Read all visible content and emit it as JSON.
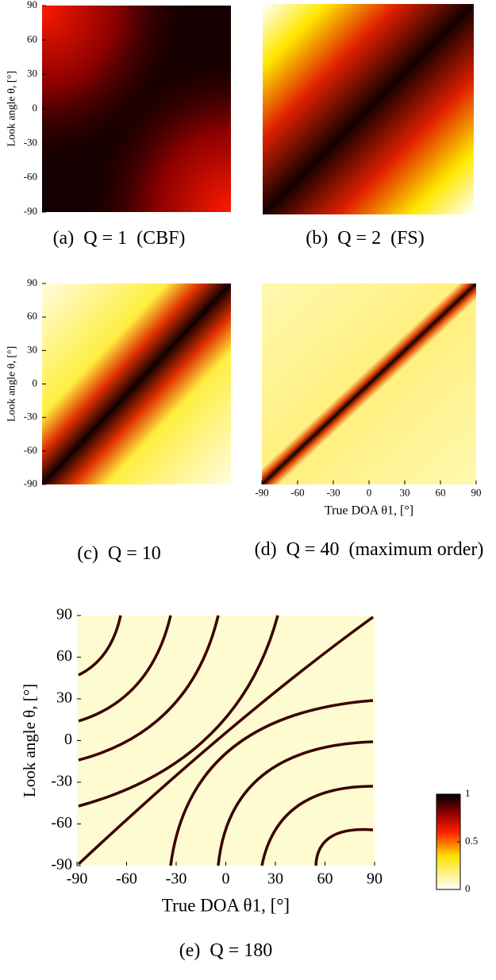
{
  "chart_data": [
    {
      "type": "heatmap",
      "caption": "(a)  Q = 1  (CBF)",
      "ylabel": "Look angle θ, [°]",
      "ylim": [
        -90,
        90
      ],
      "yticks": [
        -90,
        -60,
        -30,
        0,
        30,
        60,
        90
      ]
    },
    {
      "type": "heatmap",
      "caption": "(b)  Q = 2  (FS)",
      "ylim": [
        -90,
        90
      ]
    },
    {
      "type": "heatmap",
      "caption": "(c)  Q = 10",
      "ylabel": "Look angle θ, [°]",
      "ylim": [
        -90,
        90
      ],
      "yticks": [
        -90,
        -60,
        -30,
        0,
        30,
        60,
        90
      ]
    },
    {
      "type": "heatmap",
      "caption": "(d)  Q = 40  (maximum order)",
      "xlabel": "True DOA θ1, [°]",
      "xlim": [
        -90,
        90
      ],
      "xticks": [
        -90,
        -60,
        -30,
        0,
        30,
        60,
        90
      ],
      "ylim": [
        -90,
        90
      ]
    },
    {
      "type": "heatmap",
      "caption": "(e)  Q = 180",
      "xlabel": "True DOA θ1, [°]",
      "ylabel": "Look angle θ, [°]",
      "xlim": [
        -90,
        90
      ],
      "xticks": [
        -90,
        -60,
        -30,
        0,
        30,
        60,
        90
      ],
      "ylim": [
        -90,
        90
      ],
      "yticks": [
        -90,
        -60,
        -30,
        0,
        30,
        60,
        90
      ],
      "colorbar": {
        "lim": [
          0,
          1
        ],
        "ticks": [
          0,
          0.5,
          1
        ]
      }
    }
  ]
}
